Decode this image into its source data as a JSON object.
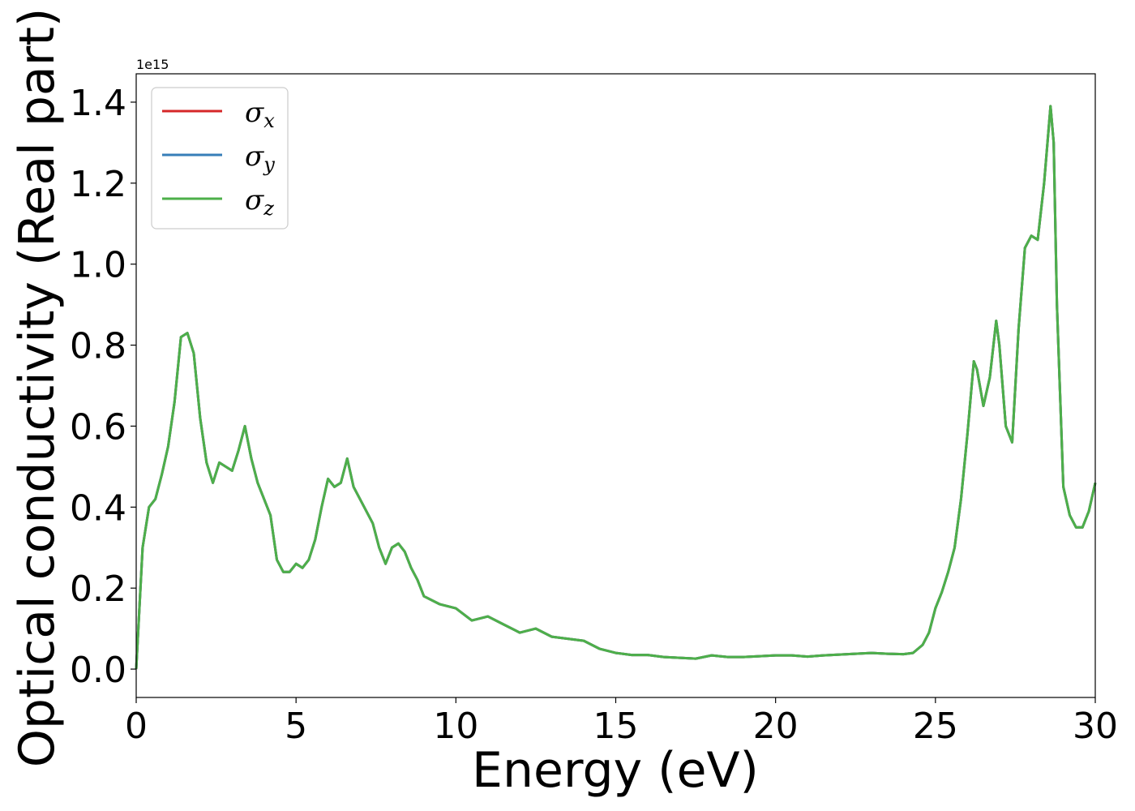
{
  "chart_data": {
    "type": "line",
    "title": "",
    "xlabel": "Energy (eV)",
    "ylabel": "Optical conductivity (Real part)",
    "y_offset_label": "1e15",
    "xlim": [
      0,
      30
    ],
    "ylim": [
      -0.07,
      1.47
    ],
    "xticks": [
      0,
      5,
      10,
      15,
      20,
      25,
      30
    ],
    "xtick_labels": [
      "0",
      "5",
      "10",
      "15",
      "20",
      "25",
      "30"
    ],
    "yticks": [
      0.0,
      0.2,
      0.4,
      0.6,
      0.8,
      1.0,
      1.2,
      1.4
    ],
    "ytick_labels": [
      "0.0",
      "0.2",
      "0.4",
      "0.6",
      "0.8",
      "1.0",
      "1.2",
      "1.4"
    ],
    "grid": false,
    "legend_position": "top-left",
    "x": [
      0,
      0.2,
      0.4,
      0.6,
      0.8,
      1.0,
      1.2,
      1.4,
      1.6,
      1.8,
      2.0,
      2.2,
      2.4,
      2.6,
      2.8,
      3.0,
      3.2,
      3.4,
      3.6,
      3.8,
      4.0,
      4.2,
      4.4,
      4.6,
      4.8,
      5.0,
      5.2,
      5.4,
      5.6,
      5.8,
      6.0,
      6.2,
      6.4,
      6.6,
      6.8,
      7.0,
      7.2,
      7.4,
      7.6,
      7.8,
      8.0,
      8.2,
      8.4,
      8.6,
      8.8,
      9.0,
      9.5,
      10.0,
      10.5,
      11.0,
      11.5,
      12.0,
      12.5,
      13.0,
      13.5,
      14.0,
      14.5,
      15.0,
      15.5,
      16.0,
      16.5,
      17.0,
      17.5,
      18.0,
      18.5,
      19.0,
      19.5,
      20.0,
      20.5,
      21.0,
      21.5,
      22.0,
      22.5,
      23.0,
      23.5,
      24.0,
      24.3,
      24.6,
      24.8,
      25.0,
      25.2,
      25.4,
      25.6,
      25.8,
      26.0,
      26.2,
      26.3,
      26.5,
      26.7,
      26.9,
      27.0,
      27.2,
      27.4,
      27.6,
      27.8,
      28.0,
      28.2,
      28.4,
      28.6,
      28.7,
      28.8,
      29.0,
      29.2,
      29.4,
      29.6,
      29.8,
      30.0
    ],
    "series": [
      {
        "name": "σx",
        "color": "#d62728",
        "values": [
          0.0,
          0.3,
          0.4,
          0.42,
          0.48,
          0.55,
          0.66,
          0.82,
          0.83,
          0.78,
          0.62,
          0.51,
          0.46,
          0.51,
          0.5,
          0.49,
          0.54,
          0.6,
          0.52,
          0.46,
          0.42,
          0.38,
          0.27,
          0.24,
          0.24,
          0.26,
          0.25,
          0.27,
          0.32,
          0.4,
          0.47,
          0.45,
          0.46,
          0.52,
          0.45,
          0.42,
          0.39,
          0.36,
          0.3,
          0.26,
          0.3,
          0.31,
          0.29,
          0.25,
          0.22,
          0.18,
          0.16,
          0.15,
          0.12,
          0.13,
          0.11,
          0.09,
          0.1,
          0.08,
          0.075,
          0.07,
          0.05,
          0.04,
          0.035,
          0.035,
          0.03,
          0.028,
          0.026,
          0.034,
          0.03,
          0.03,
          0.032,
          0.034,
          0.034,
          0.031,
          0.034,
          0.036,
          0.038,
          0.04,
          0.038,
          0.037,
          0.04,
          0.06,
          0.09,
          0.15,
          0.19,
          0.24,
          0.3,
          0.42,
          0.58,
          0.76,
          0.74,
          0.65,
          0.72,
          0.86,
          0.8,
          0.6,
          0.56,
          0.84,
          1.04,
          1.07,
          1.06,
          1.2,
          1.39,
          1.3,
          0.9,
          0.45,
          0.38,
          0.35,
          0.35,
          0.39,
          0.46
        ]
      },
      {
        "name": "σy",
        "color": "#377eb8",
        "values": [
          0.0,
          0.3,
          0.4,
          0.42,
          0.48,
          0.55,
          0.66,
          0.82,
          0.83,
          0.78,
          0.62,
          0.51,
          0.46,
          0.51,
          0.5,
          0.49,
          0.54,
          0.6,
          0.52,
          0.46,
          0.42,
          0.38,
          0.27,
          0.24,
          0.24,
          0.26,
          0.25,
          0.27,
          0.32,
          0.4,
          0.47,
          0.45,
          0.46,
          0.52,
          0.45,
          0.42,
          0.39,
          0.36,
          0.3,
          0.26,
          0.3,
          0.31,
          0.29,
          0.25,
          0.22,
          0.18,
          0.16,
          0.15,
          0.12,
          0.13,
          0.11,
          0.09,
          0.1,
          0.08,
          0.075,
          0.07,
          0.05,
          0.04,
          0.035,
          0.035,
          0.03,
          0.028,
          0.026,
          0.034,
          0.03,
          0.03,
          0.032,
          0.034,
          0.034,
          0.031,
          0.034,
          0.036,
          0.038,
          0.04,
          0.038,
          0.037,
          0.04,
          0.06,
          0.09,
          0.15,
          0.19,
          0.24,
          0.3,
          0.42,
          0.58,
          0.76,
          0.74,
          0.65,
          0.72,
          0.86,
          0.8,
          0.6,
          0.56,
          0.84,
          1.04,
          1.07,
          1.06,
          1.2,
          1.39,
          1.3,
          0.9,
          0.45,
          0.38,
          0.35,
          0.35,
          0.39,
          0.46
        ]
      },
      {
        "name": "σz",
        "color": "#4daf4a",
        "values": [
          0.0,
          0.3,
          0.4,
          0.42,
          0.48,
          0.55,
          0.66,
          0.82,
          0.83,
          0.78,
          0.62,
          0.51,
          0.46,
          0.51,
          0.5,
          0.49,
          0.54,
          0.6,
          0.52,
          0.46,
          0.42,
          0.38,
          0.27,
          0.24,
          0.24,
          0.26,
          0.25,
          0.27,
          0.32,
          0.4,
          0.47,
          0.45,
          0.46,
          0.52,
          0.45,
          0.42,
          0.39,
          0.36,
          0.3,
          0.26,
          0.3,
          0.31,
          0.29,
          0.25,
          0.22,
          0.18,
          0.16,
          0.15,
          0.12,
          0.13,
          0.11,
          0.09,
          0.1,
          0.08,
          0.075,
          0.07,
          0.05,
          0.04,
          0.035,
          0.035,
          0.03,
          0.028,
          0.026,
          0.034,
          0.03,
          0.03,
          0.032,
          0.034,
          0.034,
          0.031,
          0.034,
          0.036,
          0.038,
          0.04,
          0.038,
          0.037,
          0.04,
          0.06,
          0.09,
          0.15,
          0.19,
          0.24,
          0.3,
          0.42,
          0.58,
          0.76,
          0.74,
          0.65,
          0.72,
          0.86,
          0.8,
          0.6,
          0.56,
          0.84,
          1.04,
          1.07,
          1.06,
          1.2,
          1.39,
          1.3,
          0.9,
          0.45,
          0.38,
          0.35,
          0.35,
          0.39,
          0.46
        ]
      }
    ],
    "legend": [
      {
        "symbol": "σ",
        "sub": "x",
        "color": "#d62728"
      },
      {
        "symbol": "σ",
        "sub": "y",
        "color": "#377eb8"
      },
      {
        "symbol": "σ",
        "sub": "z",
        "color": "#4daf4a"
      }
    ]
  }
}
